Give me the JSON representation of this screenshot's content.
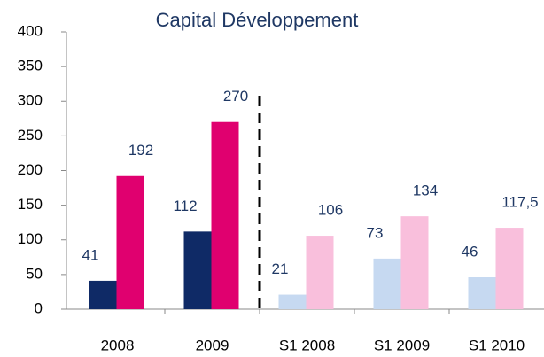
{
  "chart_data": {
    "type": "bar",
    "title": "Capital Développement",
    "categories": [
      "2008",
      "2009",
      "S1 2008",
      "S1 2009",
      "S1 2010"
    ],
    "series": [
      {
        "colors": [
          "#0f2a66",
          "#0f2a66",
          "#c6d9f1",
          "#c6d9f1",
          "#c6d9f1"
        ],
        "values": [
          41,
          112,
          21,
          73,
          46
        ]
      },
      {
        "colors": [
          "#e0006f",
          "#e0006f",
          "#f9bfdc",
          "#f9bfdc",
          "#f9bfdc"
        ],
        "values": [
          192,
          270,
          106,
          134,
          117.5
        ],
        "value_labels": [
          "192",
          "270",
          "106",
          "134",
          "117,5"
        ]
      }
    ],
    "ylim": [
      0,
      400
    ],
    "yticks": [
      0,
      50,
      100,
      150,
      200,
      250,
      300,
      350,
      400
    ],
    "grid": false
  }
}
